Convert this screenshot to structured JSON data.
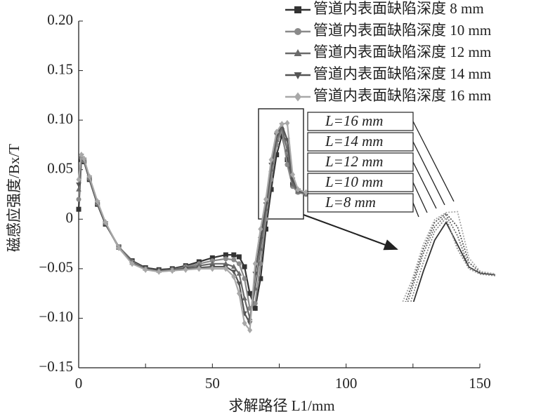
{
  "chart_data": {
    "type": "line",
    "xlabel": "求解路径 L1/mm",
    "ylabel": "磁感应强度/Bx/T",
    "x": [
      0,
      1,
      2,
      4,
      7,
      10,
      15,
      20,
      25,
      30,
      35,
      40,
      45,
      50,
      55,
      58,
      60,
      62,
      64,
      66,
      68,
      70,
      72,
      74,
      76,
      78,
      80,
      82,
      85
    ],
    "series": [
      {
        "name": "管道内表面缺陷深度 8 mm",
        "color": "#333333",
        "marker": "square",
        "values": [
          0.01,
          0.06,
          0.058,
          0.04,
          0.015,
          -0.005,
          -0.028,
          -0.042,
          -0.049,
          -0.051,
          -0.05,
          -0.047,
          -0.043,
          -0.039,
          -0.036,
          -0.036,
          -0.038,
          -0.048,
          -0.075,
          -0.09,
          -0.06,
          -0.01,
          0.03,
          0.065,
          0.085,
          0.06,
          0.035,
          0.028,
          0.026
        ]
      },
      {
        "name": "管道内表面缺陷深度 10 mm",
        "color": "#8a8a8a",
        "marker": "circle",
        "values": [
          0.02,
          0.062,
          0.059,
          0.041,
          0.016,
          -0.004,
          -0.028,
          -0.043,
          -0.05,
          -0.052,
          -0.051,
          -0.048,
          -0.045,
          -0.042,
          -0.04,
          -0.041,
          -0.045,
          -0.06,
          -0.09,
          -0.085,
          -0.045,
          0.0,
          0.04,
          0.075,
          0.09,
          0.055,
          0.033,
          0.027,
          0.025
        ]
      },
      {
        "name": "管道内表面缺陷深度 12 mm",
        "color": "#6a6a6a",
        "marker": "triangle-up",
        "values": [
          0.03,
          0.063,
          0.06,
          0.042,
          0.017,
          -0.004,
          -0.029,
          -0.044,
          -0.05,
          -0.052,
          -0.051,
          -0.049,
          -0.047,
          -0.045,
          -0.045,
          -0.048,
          -0.055,
          -0.08,
          -0.1,
          -0.07,
          -0.03,
          0.01,
          0.05,
          0.08,
          0.093,
          0.07,
          0.035,
          0.028,
          0.026
        ]
      },
      {
        "name": "管道内表面缺陷深度 14 mm",
        "color": "#555555",
        "marker": "triangle-down",
        "values": [
          0.035,
          0.064,
          0.06,
          0.042,
          0.017,
          -0.004,
          -0.029,
          -0.044,
          -0.051,
          -0.052,
          -0.052,
          -0.05,
          -0.049,
          -0.048,
          -0.048,
          -0.053,
          -0.065,
          -0.095,
          -0.105,
          -0.055,
          -0.02,
          0.015,
          0.055,
          0.085,
          0.095,
          0.08,
          0.04,
          0.029,
          0.026
        ]
      },
      {
        "name": "管道内表面缺陷深度 16 mm",
        "color": "#a8a8a8",
        "marker": "diamond",
        "values": [
          0.04,
          0.065,
          0.061,
          0.043,
          0.018,
          -0.003,
          -0.029,
          -0.045,
          -0.051,
          -0.053,
          -0.052,
          -0.051,
          -0.05,
          -0.05,
          -0.05,
          -0.058,
          -0.075,
          -0.105,
          -0.112,
          -0.045,
          -0.01,
          0.02,
          0.06,
          0.088,
          0.096,
          0.097,
          0.045,
          0.03,
          0.027
        ]
      }
    ],
    "xlim": [
      0,
      150
    ],
    "xticks": [
      0,
      50,
      100,
      150
    ],
    "xminorticks": [
      25,
      75,
      125
    ],
    "ylim": [
      -0.15,
      0.2
    ],
    "yticks": [
      {
        "value": 0.2,
        "label": "0.20"
      },
      {
        "value": 0.15,
        "label": "0.15"
      },
      {
        "value": 0.1,
        "label": "0.10"
      },
      {
        "value": 0.05,
        "label": "0.05"
      },
      0,
      {
        "value": -0.05,
        "label": "−0.05"
      },
      {
        "value": -0.1,
        "label": "−0.10"
      },
      {
        "value": -0.15,
        "label": "−0.15"
      }
    ],
    "annotations": [
      "L=16 mm",
      "L=14 mm",
      "L=12 mm",
      "L=10 mm",
      "L=8 mm"
    ]
  }
}
